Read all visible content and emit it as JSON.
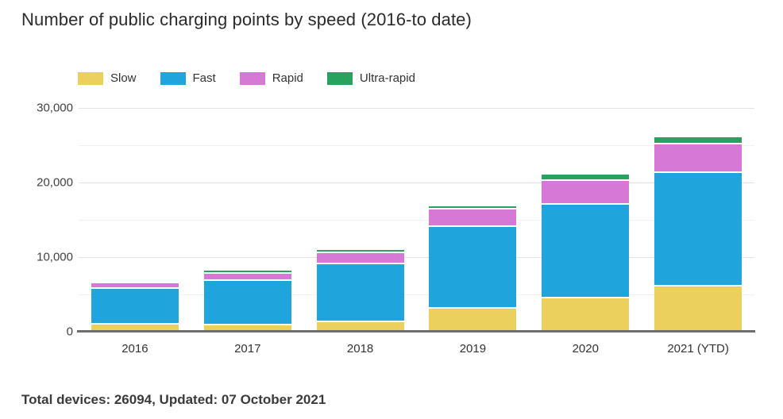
{
  "page": {
    "title": "Number of public charging points by speed (2016-to date)",
    "footer": "Total devices: 26094, Updated: 07 October 2021"
  },
  "chart_data": {
    "type": "bar",
    "stacked": true,
    "title": "Number of public charging points by speed (2016-to date)",
    "xlabel": "",
    "ylabel": "",
    "categories": [
      "2016",
      "2017",
      "2018",
      "2019",
      "2020",
      "2021 (YTD)"
    ],
    "series": [
      {
        "name": "Slow",
        "color": "#ecd05e",
        "values": [
          900,
          800,
          1250,
          3050,
          4450,
          6000
        ]
      },
      {
        "name": "Fast",
        "color": "#1fa5db",
        "values": [
          4750,
          5950,
          7800,
          10950,
          12550,
          15300
        ]
      },
      {
        "name": "Rapid",
        "color": "#d678d6",
        "values": [
          850,
          1000,
          1500,
          2350,
          3150,
          3750
        ]
      },
      {
        "name": "Ultra-rapid",
        "color": "#2aa25f",
        "values": [
          200,
          350,
          400,
          450,
          900,
          1044
        ]
      }
    ],
    "totals": [
      6700,
      8100,
      10950,
      16800,
      21050,
      26094
    ],
    "ylim": [
      0,
      30000
    ],
    "yticks": [
      {
        "value": 0,
        "label": "0"
      },
      {
        "value": 10000,
        "label": "10,000"
      },
      {
        "value": 20000,
        "label": "20,000"
      },
      {
        "value": 30000,
        "label": "30,000"
      }
    ],
    "minor_gridlines": [
      5000,
      15000,
      25000
    ],
    "grid": true,
    "legend_position": "top",
    "annotation": "Total devices: 26094, Updated: 07 October 2021"
  }
}
